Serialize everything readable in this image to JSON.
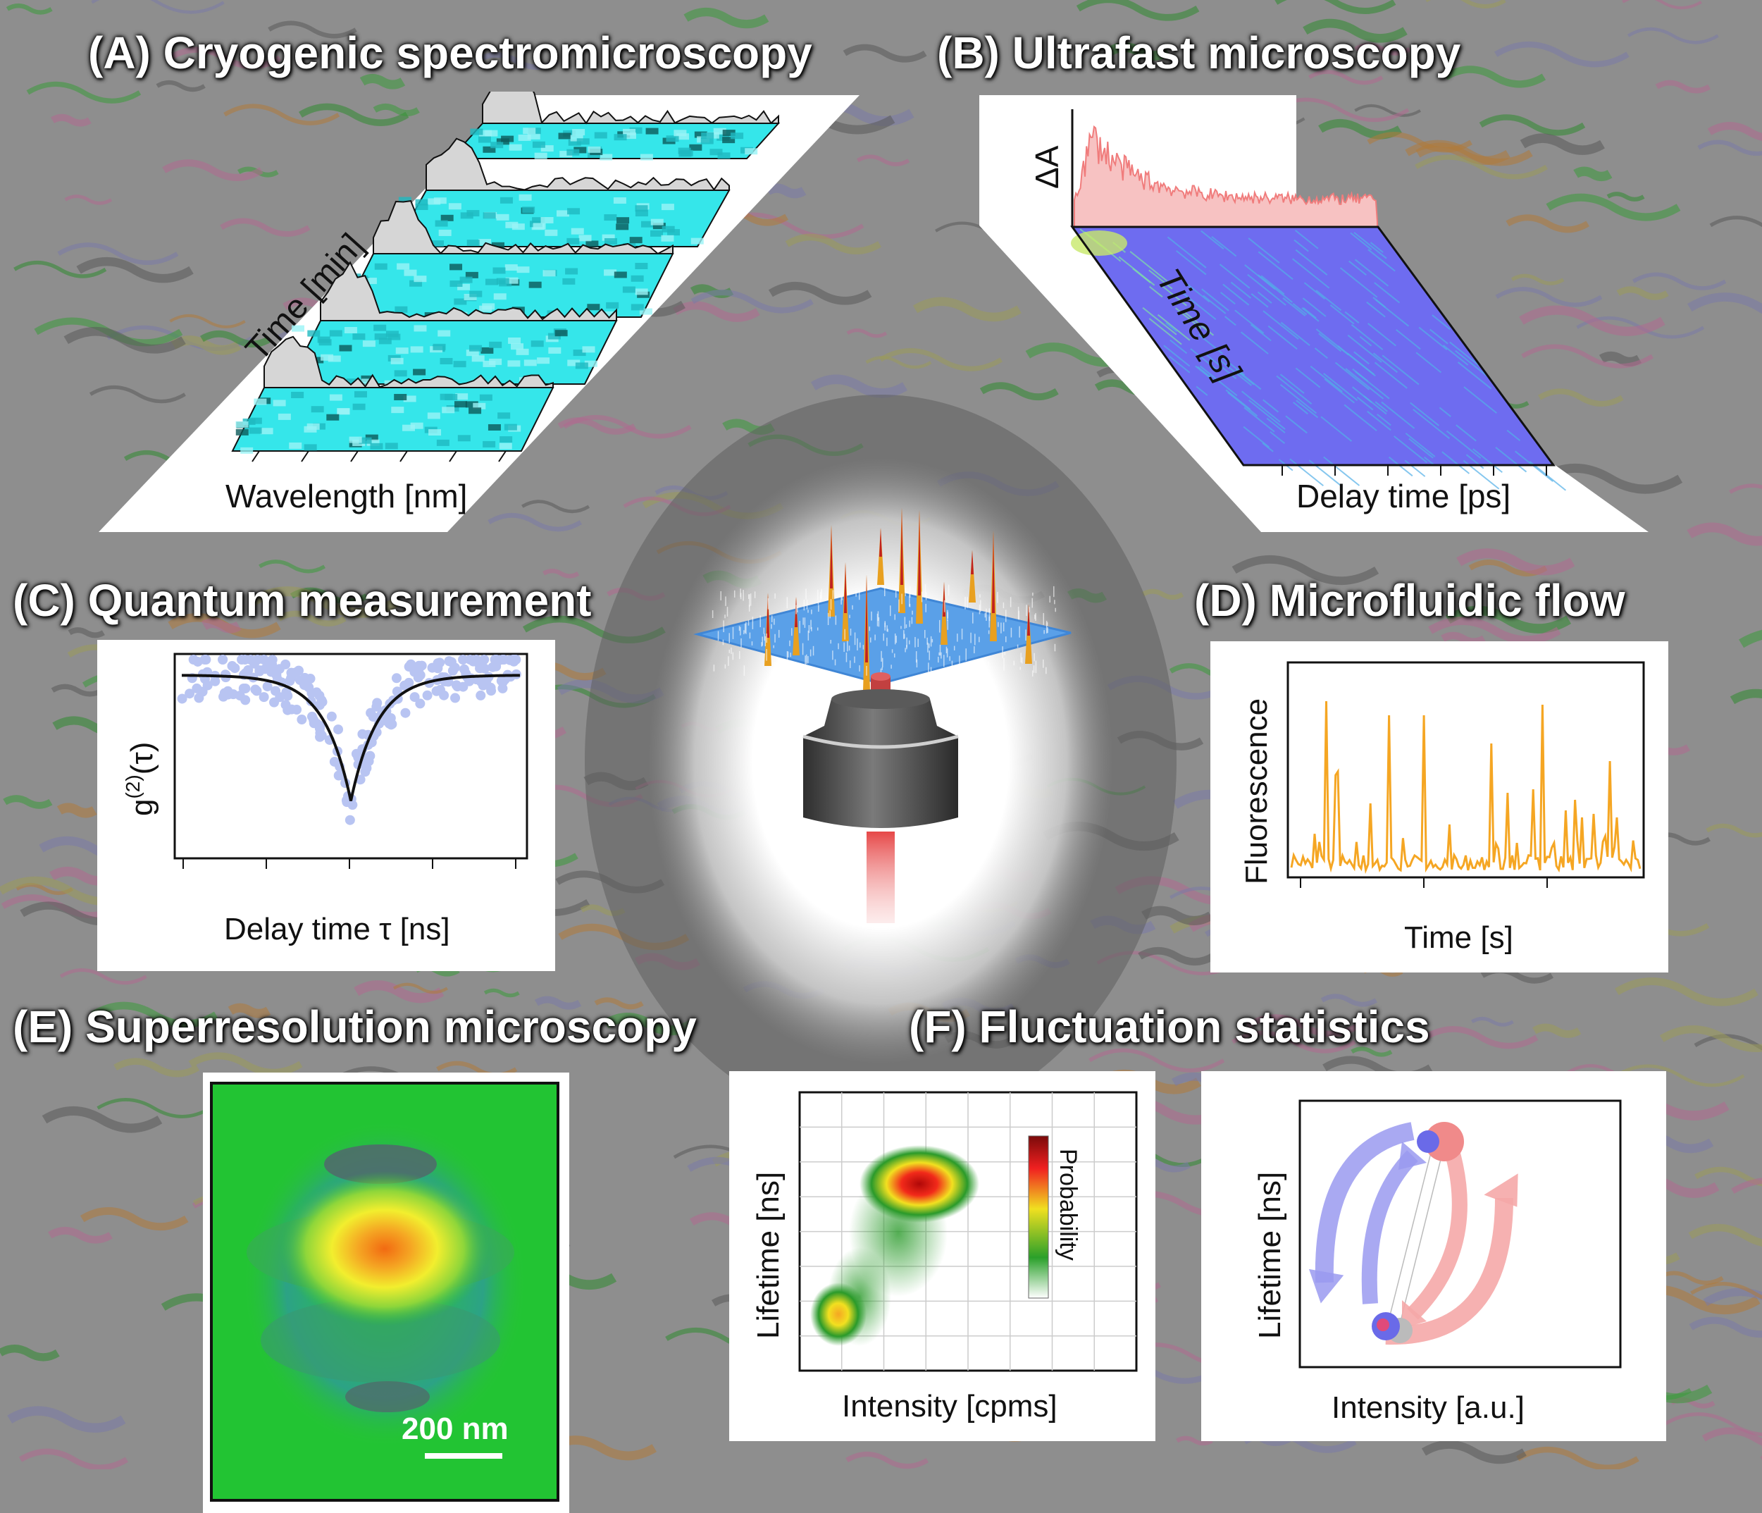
{
  "titles": {
    "A": "(A) Cryogenic spectromicroscopy",
    "B": "(B) Ultrafast microscopy",
    "C": "(C) Quantum measurement",
    "D": "(D) Microfluidic flow",
    "E": "(E) Superresolution microscopy",
    "F": "(F) Fluctuation statistics"
  },
  "panelA": {
    "xlabel": "Wavelength [nm]",
    "ylabel": "Time [min]"
  },
  "panelB": {
    "xlabel": "Delay time [ps]",
    "ylabel": "Time [s]",
    "zlabel": "ΔA"
  },
  "panelC": {
    "xlabel": "Delay time τ [ns]",
    "ylabel_main": "g",
    "ylabel_sup": "(2)",
    "ylabel_tail": "(τ)"
  },
  "panelD": {
    "xlabel": "Time [s]",
    "ylabel": "Fluorescence"
  },
  "panelE": {
    "scalebar": "200 nm"
  },
  "panelF1": {
    "xlabel": "Intensity [cpms]",
    "ylabel": "Lifetime [ns]",
    "colorbar_label": "Probability"
  },
  "panelF2": {
    "xlabel": "Intensity [a.u.]",
    "ylabel": "Lifetime [ns]"
  },
  "colors": {
    "background": "#8e8e8e",
    "cryo_map": "#35e6ea",
    "pump_probe_trace": "#f07c7c",
    "pump_probe_map": "#6e6cf0",
    "g2_points": "#b8c4f2",
    "flow_trace": "#f5a623",
    "state_blue": "#7878ee",
    "state_red": "#f08a8a"
  }
}
